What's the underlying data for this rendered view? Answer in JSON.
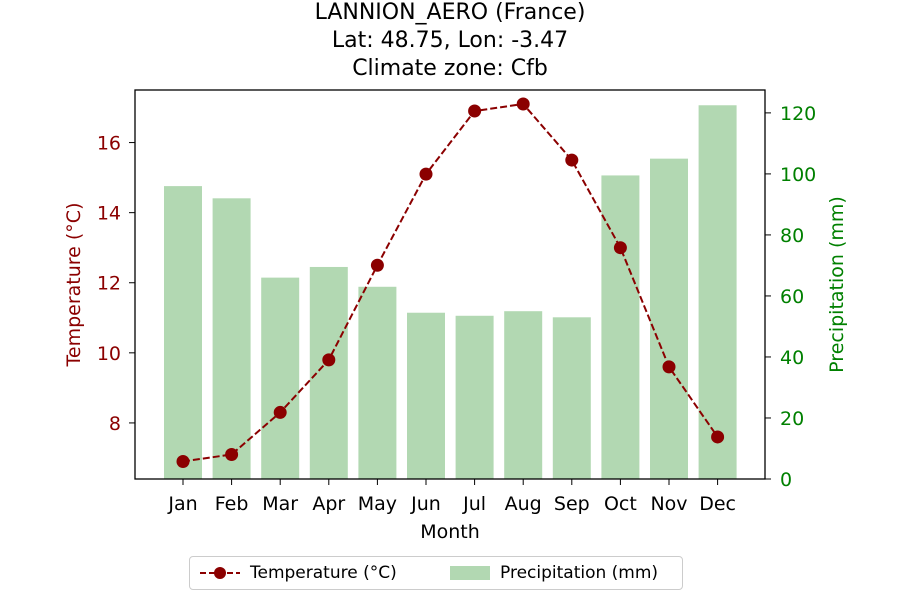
{
  "title_lines": [
    "LANNION_AERO (France)",
    "Lat: 48.75, Lon: -3.47",
    "Climate zone: Cfb"
  ],
  "chart_data": {
    "type": "bar+line",
    "categories": [
      "Jan",
      "Feb",
      "Mar",
      "Apr",
      "May",
      "Jun",
      "Jul",
      "Aug",
      "Sep",
      "Oct",
      "Nov",
      "Dec"
    ],
    "series": [
      {
        "name": "Temperature (°C)",
        "type": "line",
        "axis": "left",
        "color": "#8b0000",
        "values": [
          6.9,
          7.1,
          8.3,
          9.8,
          12.5,
          15.1,
          16.9,
          17.1,
          15.5,
          13.0,
          9.6,
          7.6
        ]
      },
      {
        "name": "Precipitation (mm)",
        "type": "bar",
        "axis": "right",
        "color": "#b2d8b2",
        "values": [
          96,
          92,
          66,
          69.5,
          63,
          54.5,
          53.5,
          55,
          53,
          99.5,
          105,
          122.5
        ]
      }
    ],
    "xlabel": "Month",
    "ylabel_left": "Temperature (°C)",
    "ylabel_right": "Precipitation (mm)",
    "ylim_left": [
      6.4,
      17.5
    ],
    "ylim_right": [
      0,
      127.5
    ],
    "yticks_left": [
      8,
      10,
      12,
      14,
      16
    ],
    "yticks_right": [
      0,
      20,
      40,
      60,
      80,
      100,
      120
    ],
    "left_axis_color": "#8b0000",
    "right_axis_color": "#008000",
    "grid": false,
    "legend_position": "bottom-center"
  }
}
